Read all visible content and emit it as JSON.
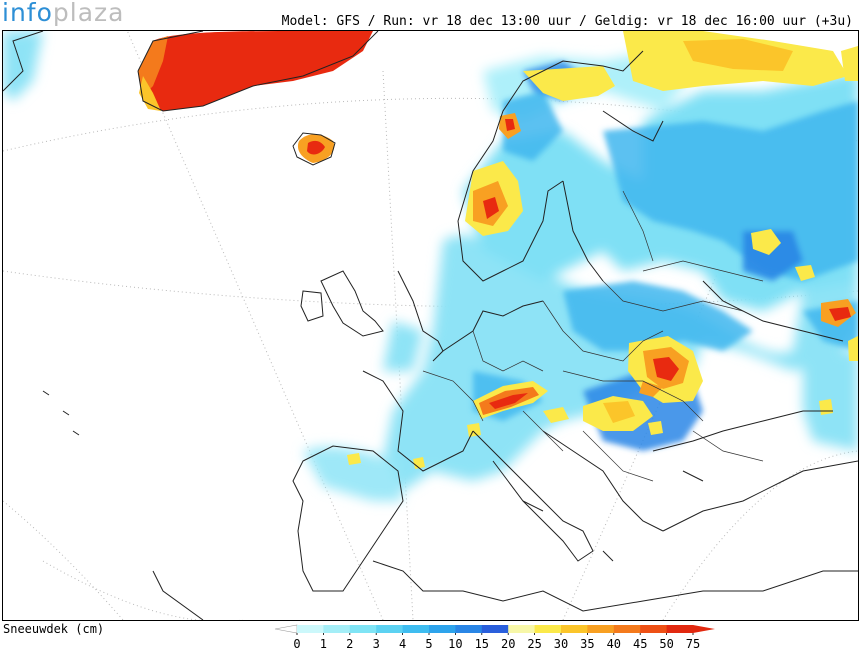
{
  "logo": {
    "part1": "info",
    "part2": "plaza"
  },
  "header": {
    "text": "Model: GFS / Run: vr 18 dec 13:00 uur / Geldig: vr 18 dec 16:00 uur (+3u)"
  },
  "legend": {
    "title": "Sneeuwdek (cm)",
    "ticks": [
      "0",
      "1",
      "2",
      "3",
      "4",
      "5",
      "10",
      "15",
      "20",
      "25",
      "30",
      "35",
      "40",
      "45",
      "50",
      "75"
    ],
    "colors": [
      "#ccf8fb",
      "#a4eef7",
      "#7fe4f5",
      "#5cd2f2",
      "#3fbdf0",
      "#2ea4ec",
      "#2a86e6",
      "#2a5fdc",
      "#f7f7a8",
      "#fbe94a",
      "#fbc52a",
      "#f8a022",
      "#f47a1c",
      "#ee5015",
      "#e22910"
    ]
  },
  "map": {
    "region": "Europe",
    "palette": {
      "light": "#bff4fb",
      "mid": "#55d0f3",
      "blue": "#2f9ce8",
      "deep": "#2a5fdc",
      "yellow": "#fbe94a",
      "orange": "#f8a022",
      "red": "#e82a10",
      "land_line": "#222222"
    }
  }
}
